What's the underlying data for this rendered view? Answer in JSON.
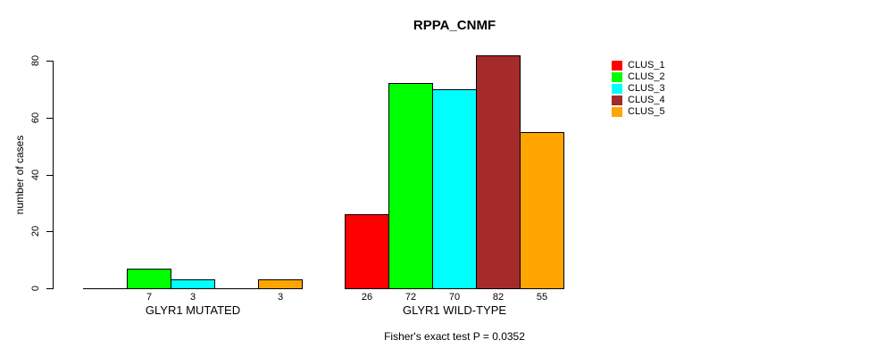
{
  "title": "RPPA_CNMF",
  "chart_data": {
    "type": "bar",
    "title": "RPPA_CNMF",
    "ylabel": "number of cases",
    "xlabel": "",
    "ylim": [
      0,
      80
    ],
    "yticks": [
      0,
      20,
      40,
      60,
      80
    ],
    "grid": false,
    "legend_position": "right",
    "groups": [
      {
        "label": "GLYR1 MUTATED"
      },
      {
        "label": "GLYR1 WILD-TYPE"
      }
    ],
    "series": [
      {
        "name": "CLUS_1",
        "color": "#ff0000",
        "values": [
          0,
          26
        ],
        "bar_labels": [
          "",
          "26"
        ]
      },
      {
        "name": "CLUS_2",
        "color": "#00ff00",
        "values": [
          7,
          72
        ],
        "bar_labels": [
          "7",
          "72"
        ]
      },
      {
        "name": "CLUS_3",
        "color": "#00ffff",
        "values": [
          3,
          70
        ],
        "bar_labels": [
          "3",
          "70"
        ]
      },
      {
        "name": "CLUS_4",
        "color": "#a52a2a",
        "values": [
          0,
          82
        ],
        "bar_labels": [
          "",
          "82"
        ]
      },
      {
        "name": "CLUS_5",
        "color": "#ffa500",
        "values": [
          3,
          55
        ],
        "bar_labels": [
          "3",
          "55"
        ]
      }
    ],
    "annotation": "Fisher's exact test P = 0.0352"
  }
}
